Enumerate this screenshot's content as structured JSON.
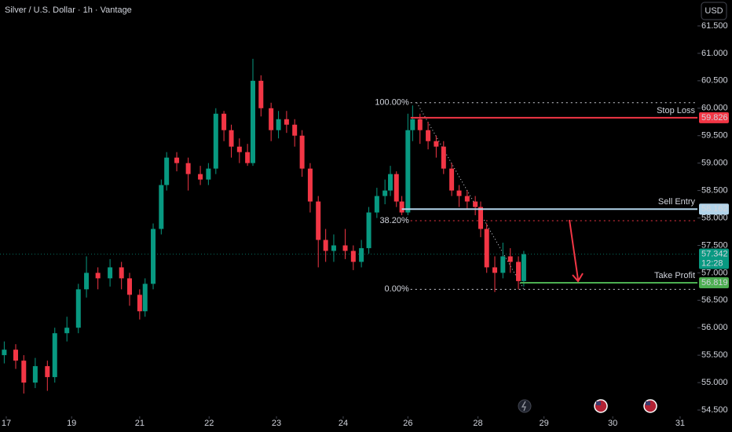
{
  "chart_data": {
    "type": "candlestick",
    "title": "Silver / U.S. Dollar · 1h · Vantage",
    "currency": "USD",
    "up_color": "#089981",
    "down_color": "#f23645",
    "x": [
      -0.03,
      0.14,
      0.26,
      0.43,
      0.61,
      0.72,
      0.9,
      1.07,
      1.19,
      1.36,
      1.54,
      1.71,
      1.83,
      1.98,
      2.06,
      2.18,
      2.3,
      2.38,
      2.53,
      2.7,
      2.88,
      3.0,
      3.11,
      3.23,
      3.34,
      3.46,
      3.58,
      3.66,
      3.78,
      3.93,
      4.04,
      4.16,
      4.28,
      4.39,
      4.51,
      4.63,
      4.74,
      4.86,
      5.03,
      5.15,
      5.27,
      5.38,
      5.5,
      5.62,
      5.7,
      5.79,
      5.87,
      5.96,
      6.03,
      6.14,
      6.26,
      6.38,
      6.49,
      6.61,
      6.72,
      6.84,
      6.96,
      7.04,
      7.13,
      7.25,
      7.37,
      7.48,
      7.6,
      7.68
    ],
    "open": [
      55.5,
      55.6,
      55.4,
      55.0,
      55.3,
      55.1,
      55.9,
      56.0,
      56.7,
      57.0,
      56.9,
      57.1,
      56.9,
      56.6,
      56.3,
      56.8,
      57.8,
      58.6,
      59.1,
      59.0,
      58.8,
      58.7,
      58.9,
      59.9,
      59.6,
      59.3,
      59.2,
      59.0,
      60.5,
      60.0,
      59.6,
      59.8,
      59.7,
      59.5,
      58.9,
      58.3,
      57.6,
      57.4,
      57.5,
      57.4,
      57.2,
      57.45,
      58.1,
      58.4,
      58.5,
      58.8,
      58.3,
      58.1,
      59.6,
      59.8,
      59.6,
      59.4,
      59.3,
      58.9,
      58.5,
      58.4,
      58.3,
      58.2,
      57.8,
      57.1,
      57.0,
      57.3,
      57.2,
      56.85
    ],
    "high": [
      55.75,
      55.7,
      55.5,
      55.45,
      55.4,
      56.0,
      56.2,
      56.8,
      57.3,
      57.1,
      57.25,
      57.2,
      57.0,
      56.7,
      56.9,
      57.9,
      58.7,
      59.2,
      59.2,
      59.1,
      58.95,
      59.0,
      60.0,
      59.95,
      59.7,
      59.45,
      59.35,
      60.9,
      60.6,
      60.1,
      59.95,
      59.95,
      59.8,
      59.6,
      59.0,
      58.4,
      57.8,
      57.7,
      57.8,
      57.5,
      57.6,
      58.2,
      58.55,
      58.7,
      58.95,
      58.85,
      58.4,
      59.9,
      60.05,
      59.9,
      59.75,
      59.5,
      59.4,
      59.0,
      58.6,
      58.5,
      58.4,
      58.3,
      57.9,
      57.3,
      57.55,
      57.45,
      57.3,
      57.4
    ],
    "low": [
      55.35,
      55.25,
      54.8,
      54.9,
      54.85,
      55.0,
      55.75,
      55.9,
      56.55,
      56.7,
      56.75,
      56.7,
      56.4,
      56.15,
      56.2,
      56.7,
      57.7,
      58.5,
      58.85,
      58.5,
      58.6,
      58.6,
      58.8,
      59.4,
      59.1,
      59.0,
      58.95,
      58.95,
      59.85,
      59.4,
      59.45,
      59.55,
      59.3,
      58.75,
      58.1,
      57.1,
      57.2,
      57.2,
      57.25,
      57.05,
      57.1,
      57.35,
      58.0,
      58.25,
      58.4,
      58.2,
      58.05,
      58.05,
      59.4,
      59.35,
      59.25,
      59.1,
      58.8,
      58.4,
      58.2,
      58.15,
      58.05,
      57.65,
      57.0,
      56.65,
      56.9,
      57.0,
      56.7,
      56.75
    ],
    "close": [
      55.6,
      55.4,
      55.0,
      55.3,
      55.1,
      55.9,
      56.0,
      56.7,
      57.0,
      56.9,
      57.1,
      56.9,
      56.6,
      56.3,
      56.8,
      57.8,
      58.6,
      59.1,
      59.0,
      58.8,
      58.7,
      58.9,
      59.9,
      59.6,
      59.3,
      59.2,
      59.0,
      60.5,
      60.0,
      59.6,
      59.8,
      59.7,
      59.5,
      58.9,
      58.3,
      57.6,
      57.4,
      57.5,
      57.4,
      57.2,
      57.45,
      58.1,
      58.4,
      58.5,
      58.8,
      58.3,
      58.1,
      59.6,
      59.8,
      59.6,
      59.4,
      59.3,
      58.9,
      58.5,
      58.4,
      58.3,
      58.2,
      57.8,
      57.1,
      57.0,
      57.3,
      57.2,
      56.85,
      57.34
    ],
    "xlim": [
      -0.093,
      10.257
    ],
    "ylim": [
      54.386,
      61.972
    ],
    "xticks": [
      {
        "value": 0,
        "label": "17"
      },
      {
        "value": 0.97,
        "label": "19"
      },
      {
        "value": 1.98,
        "label": "21"
      },
      {
        "value": 3.01,
        "label": "22"
      },
      {
        "value": 4.01,
        "label": "23"
      },
      {
        "value": 5.0,
        "label": "24"
      },
      {
        "value": 5.96,
        "label": "26"
      },
      {
        "value": 7.0,
        "label": "28"
      },
      {
        "value": 7.98,
        "label": "29"
      },
      {
        "value": 9.0,
        "label": "30"
      },
      {
        "value": 10.0,
        "label": "31"
      }
    ],
    "yticks": [
      {
        "value": 54.5,
        "label": "54.500"
      },
      {
        "value": 55,
        "label": "55.000"
      },
      {
        "value": 55.5,
        "label": "55.500"
      },
      {
        "value": 56,
        "label": "56.000"
      },
      {
        "value": 56.5,
        "label": "56.500"
      },
      {
        "value": 57,
        "label": "57.000"
      },
      {
        "value": 57.5,
        "label": "57.500"
      },
      {
        "value": 58,
        "label": "58.000"
      },
      {
        "value": 58.5,
        "label": "58.500"
      },
      {
        "value": 59,
        "label": "59.000"
      },
      {
        "value": 59.5,
        "label": "59.500"
      },
      {
        "value": 60,
        "label": "60.000"
      },
      {
        "value": 60.5,
        "label": "60.500"
      },
      {
        "value": 61,
        "label": "61.000"
      },
      {
        "value": 61.5,
        "label": "61.500"
      }
    ],
    "current_price": {
      "value": 57.342,
      "label": "57.342",
      "countdown": "12:28",
      "color": "#089981"
    },
    "fibonacci": {
      "start": 6.0,
      "levels": [
        {
          "label": "100.00%",
          "price": 60.1
        },
        {
          "label": "38.20%",
          "price": 57.95
        },
        {
          "label": "0.00%",
          "price": 56.7
        }
      ]
    },
    "levels": [
      {
        "name": "Stop Loss",
        "value": 59.826,
        "value_label": "59.826",
        "color": "#f23645",
        "start": 6.0
      },
      {
        "name": "Sell Entry",
        "value": 58.162,
        "value_label": "58.162",
        "color": "#b2d4ea",
        "start": 5.87
      },
      {
        "name": "Take Profit",
        "value": 56.819,
        "value_label": "56.819",
        "color": "#4caf50",
        "start": 7.63
      }
    ]
  }
}
